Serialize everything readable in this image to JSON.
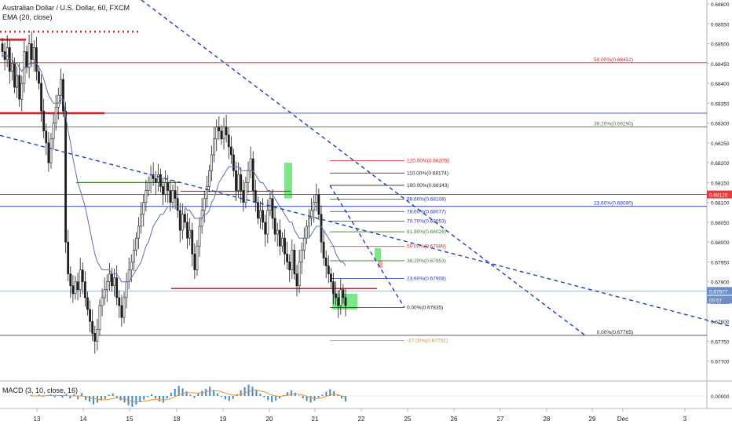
{
  "header": {
    "symbol_line": "Australian Dollar / U.S. Dollar, 60, FXCM",
    "indicator_line": "EMA (20, close)",
    "macd_label": "MACD (3, 10, close, 16)"
  },
  "colors": {
    "up": "#26a69a",
    "down": "#ef5350",
    "candle": "#1e1e1e",
    "ema": "#5b6fb0",
    "trend": "#1e3fbf",
    "red_level": "#e02020",
    "green_level": "#3d7a2a",
    "blue_level": "#2233bb",
    "orange_level": "#e08a1e",
    "price_badge": "#e83a3a",
    "current_badge": "#6d8fc7",
    "macd_hist": "#3c8bd6",
    "macd_signal": "#f0902a",
    "macd_line": "#c62828",
    "highlight": "#44dd55"
  },
  "chart_data": {
    "type": "candlestick",
    "title": "Australian Dollar / U.S. Dollar, 60, FXCM",
    "ylim": [
      0.6765,
      0.6861
    ],
    "y_ticks": [
      "0.68600",
      "0.68550",
      "0.68500",
      "0.68450",
      "0.68400",
      "0.68350",
      "0.68300",
      "0.68250",
      "0.68200",
      "0.68150",
      "0.68100",
      "0.68050",
      "0.68000",
      "0.67950",
      "0.67900",
      "0.67850",
      "0.67800",
      "0.67750",
      "0.67700",
      "0.67650"
    ],
    "x_ticks": [
      "13",
      "14",
      "15",
      "18",
      "19",
      "20",
      "21",
      "22",
      "25",
      "26",
      "27",
      "28",
      "29",
      "Dec",
      "3"
    ],
    "price_badges": [
      {
        "text": "0.68120",
        "value": 0.6812,
        "kind": "level"
      },
      {
        "text": "0.67877",
        "value": 0.67877,
        "kind": "current"
      },
      {
        "text": "00:57",
        "value": 0.67855,
        "kind": "countdown"
      }
    ],
    "left_fib": [
      {
        "label": "61.80%(0.68614)",
        "value": 0.68614,
        "color": "green"
      },
      {
        "label": "50.00%(0.68452)",
        "value": 0.68452,
        "color": "red"
      },
      {
        "label": "38.20%(0.68290)",
        "value": 0.6829,
        "color": "green"
      },
      {
        "label": "23.60%(0.68090)",
        "value": 0.6809,
        "color": "blue"
      },
      {
        "label": "0.00%(0.67765)",
        "value": 0.67765,
        "color": "black"
      }
    ],
    "right_fib": [
      {
        "label": "120.00%(0.68205)",
        "value": 0.68205,
        "color": "red"
      },
      {
        "label": "110.00%(0.68174)",
        "value": 0.68174,
        "color": "black"
      },
      {
        "label": "100.00%(0.68143)",
        "value": 0.68143,
        "color": "black"
      },
      {
        "label": "88.60%(0.68108)",
        "value": 0.68108,
        "color": "blue"
      },
      {
        "label": "78.60%(0.68077)",
        "value": 0.68077,
        "color": "blue"
      },
      {
        "label": "70.70%(0.68053)",
        "value": 0.68053,
        "color": "blue"
      },
      {
        "label": "61.80%(0.68026)",
        "value": 0.68026,
        "color": "green"
      },
      {
        "label": "50.00%(0.67989)",
        "value": 0.67989,
        "color": "red"
      },
      {
        "label": "38.20%(0.67953)",
        "value": 0.67953,
        "color": "green"
      },
      {
        "label": "23.60%(0.67908)",
        "value": 0.67908,
        "color": "blue"
      },
      {
        "label": "0.00%(0.67835)",
        "value": 0.67835,
        "color": "black"
      },
      {
        "label": "-27.00%(0.67752)",
        "value": 0.67752,
        "color": "orange"
      }
    ],
    "candles_close": [
      0.6848,
      0.6846,
      0.6849,
      0.6843,
      0.6845,
      0.6839,
      0.6842,
      0.6836,
      0.684,
      0.6848,
      0.6844,
      0.685,
      0.6846,
      0.6849,
      0.6843,
      0.684,
      0.6833,
      0.6828,
      0.6825,
      0.682,
      0.6826,
      0.683,
      0.6834,
      0.6837,
      0.6841,
      0.6833,
      0.68,
      0.6792,
      0.6789,
      0.6787,
      0.679,
      0.6788,
      0.6793,
      0.679,
      0.6786,
      0.6783,
      0.678,
      0.6777,
      0.6775,
      0.6778,
      0.6784,
      0.6786,
      0.6788,
      0.679,
      0.6792,
      0.6789,
      0.6791,
      0.6786,
      0.6784,
      0.6781,
      0.6786,
      0.679,
      0.6793,
      0.6795,
      0.6798,
      0.6801,
      0.6804,
      0.6807,
      0.681,
      0.6813,
      0.6815,
      0.6817,
      0.6816,
      0.6815,
      0.6817,
      0.6814,
      0.6812,
      0.6815,
      0.6813,
      0.681,
      0.6813,
      0.6811,
      0.6808,
      0.6803,
      0.6807,
      0.6805,
      0.6801,
      0.6803,
      0.6797,
      0.6793,
      0.6799,
      0.6804,
      0.6808,
      0.6811,
      0.6814,
      0.6818,
      0.6822,
      0.6826,
      0.6829,
      0.6828,
      0.6826,
      0.6829,
      0.6827,
      0.6824,
      0.6822,
      0.6818,
      0.6813,
      0.6817,
      0.6813,
      0.681,
      0.6815,
      0.6818,
      0.6821,
      0.6813,
      0.681,
      0.6806,
      0.6808,
      0.6805,
      0.6802,
      0.6808,
      0.6811,
      0.6806,
      0.6802,
      0.6803,
      0.6799,
      0.6801,
      0.6797,
      0.6795,
      0.6793,
      0.6798,
      0.6792,
      0.6789,
      0.6795,
      0.6798,
      0.6801,
      0.6804,
      0.6806,
      0.6808,
      0.681,
      0.6812,
      0.6807,
      0.68,
      0.6796,
      0.6794,
      0.6792,
      0.679,
      0.6787,
      0.6786,
      0.6784,
      0.6788,
      0.6786,
      0.6784
    ],
    "ema_values": [
      0.6847,
      0.6847,
      0.6847,
      0.6846,
      0.6846,
      0.6845,
      0.6845,
      0.6844,
      0.6843,
      0.6844,
      0.6844,
      0.6845,
      0.6845,
      0.6845,
      0.6845,
      0.6844,
      0.6843,
      0.6841,
      0.6839,
      0.6837,
      0.6836,
      0.6835,
      0.6835,
      0.6835,
      0.6836,
      0.6836,
      0.6832,
      0.6828,
      0.6825,
      0.6821,
      0.6818,
      0.6815,
      0.6813,
      0.6811,
      0.6809,
      0.6806,
      0.6803,
      0.68,
      0.6797,
      0.6795,
      0.6794,
      0.6793,
      0.6793,
      0.6793,
      0.6793,
      0.6792,
      0.6792,
      0.6792,
      0.6791,
      0.679,
      0.679,
      0.679,
      0.679,
      0.6791,
      0.6792,
      0.6793,
      0.6794,
      0.6795,
      0.6797,
      0.6799,
      0.68,
      0.6802,
      0.6804,
      0.6805,
      0.6806,
      0.6807,
      0.6807,
      0.6808,
      0.6809,
      0.6809,
      0.6809,
      0.6809,
      0.6809,
      0.6809,
      0.6809,
      0.6809,
      0.6808,
      0.6808,
      0.6807,
      0.6806,
      0.6806,
      0.6806,
      0.6806,
      0.6807,
      0.6807,
      0.6808,
      0.681,
      0.6811,
      0.6813,
      0.6815,
      0.6816,
      0.6817,
      0.6818,
      0.6819,
      0.6819,
      0.6819,
      0.6819,
      0.6819,
      0.6818,
      0.6818,
      0.6818,
      0.6818,
      0.6818,
      0.6818,
      0.6817,
      0.6816,
      0.6815,
      0.6815,
      0.6814,
      0.6813,
      0.6813,
      0.6812,
      0.6811,
      0.681,
      0.6809,
      0.6808,
      0.6807,
      0.6806,
      0.6805,
      0.6805,
      0.6803,
      0.6802,
      0.6801,
      0.6801,
      0.6801,
      0.6801,
      0.6801,
      0.6802,
      0.6803,
      0.6804,
      0.6804,
      0.6804,
      0.6803,
      0.6802,
      0.6801,
      0.68,
      0.6799,
      0.6797,
      0.6796,
      0.6795,
      0.6795,
      0.6794
    ],
    "candle_x_start": 0,
    "candle_x_end": 440,
    "trendlines": [
      {
        "x1": 180,
        "y1": 0.6861,
        "x2": 745,
        "y2": 0.67765,
        "style": "dashed"
      },
      {
        "x1": 0,
        "y1": 0.68269,
        "x2": 932,
        "y2": 0.67787,
        "style": "dashed"
      },
      {
        "x1": 420,
        "y1": 0.68143,
        "x2": 515,
        "y2": 0.67835,
        "style": "dashed"
      }
    ],
    "macd": {
      "histogram": [
        0.2,
        -0.1,
        0.3,
        -0.2,
        0.1,
        0.4,
        -0.3,
        0.2,
        -0.4,
        0.5,
        -0.6,
        0.4,
        -0.8,
        0.7,
        -1,
        -1.4,
        -2,
        -1.6,
        -1.1,
        -0.7,
        0.3,
        0.6,
        -0.4,
        -1.1,
        -1.6,
        -2.2,
        -2.6,
        -2.1,
        -1.5,
        -0.9,
        -0.3,
        0.4,
        -0.6,
        -1.3,
        -1.6,
        -0.6,
        0.8,
        1.7,
        2.4,
        1.8,
        1.1,
        0.3,
        -0.5,
        0.6,
        1.2,
        1.7,
        2.2,
        1.4,
        0.6,
        -0.2,
        -0.8,
        -1.2,
        -0.7,
        0.4,
        1.3,
        2.1,
        2.7,
        2.2,
        1.4,
        0.5,
        -0.3,
        -1,
        -1.5,
        -1.1,
        -0.6,
        0.2,
        0.9,
        1.3,
        0.8,
        0.1,
        -0.6,
        -1.2,
        -1.6,
        -1.1,
        -0.4,
        0.3,
        1,
        1.6,
        1.1,
        0.2,
        -0.6,
        -1.3
      ],
      "signal": [
        0,
        0,
        0,
        0,
        0.1,
        0.1,
        0.1,
        0.1,
        0.1,
        0.1,
        0,
        0,
        0,
        0,
        -0.2,
        -0.4,
        -0.6,
        -0.8,
        -0.9,
        -0.9,
        -0.8,
        -0.6,
        -0.5,
        -0.6,
        -0.8,
        -1,
        -1.3,
        -1.4,
        -1.4,
        -1.3,
        -1.1,
        -0.9,
        -0.8,
        -0.9,
        -1,
        -0.9,
        -0.6,
        -0.2,
        0.3,
        0.6,
        0.8,
        0.8,
        0.7,
        0.7,
        0.8,
        1,
        1.2,
        1.3,
        1.2,
        1,
        0.7,
        0.4,
        0.2,
        0.2,
        0.4,
        0.7,
        1.1,
        1.3,
        1.4,
        1.2,
        1,
        0.6,
        0.2,
        0,
        -0.1,
        0,
        0.2,
        0.4,
        0.5,
        0.4,
        0.2,
        -0.1,
        -0.4,
        -0.6,
        -0.6,
        -0.4,
        -0.1,
        0.2,
        0.4,
        0.3,
        0,
        -0.3
      ],
      "ylim": [
        -3,
        3
      ],
      "y_tick": "0.00000"
    }
  }
}
